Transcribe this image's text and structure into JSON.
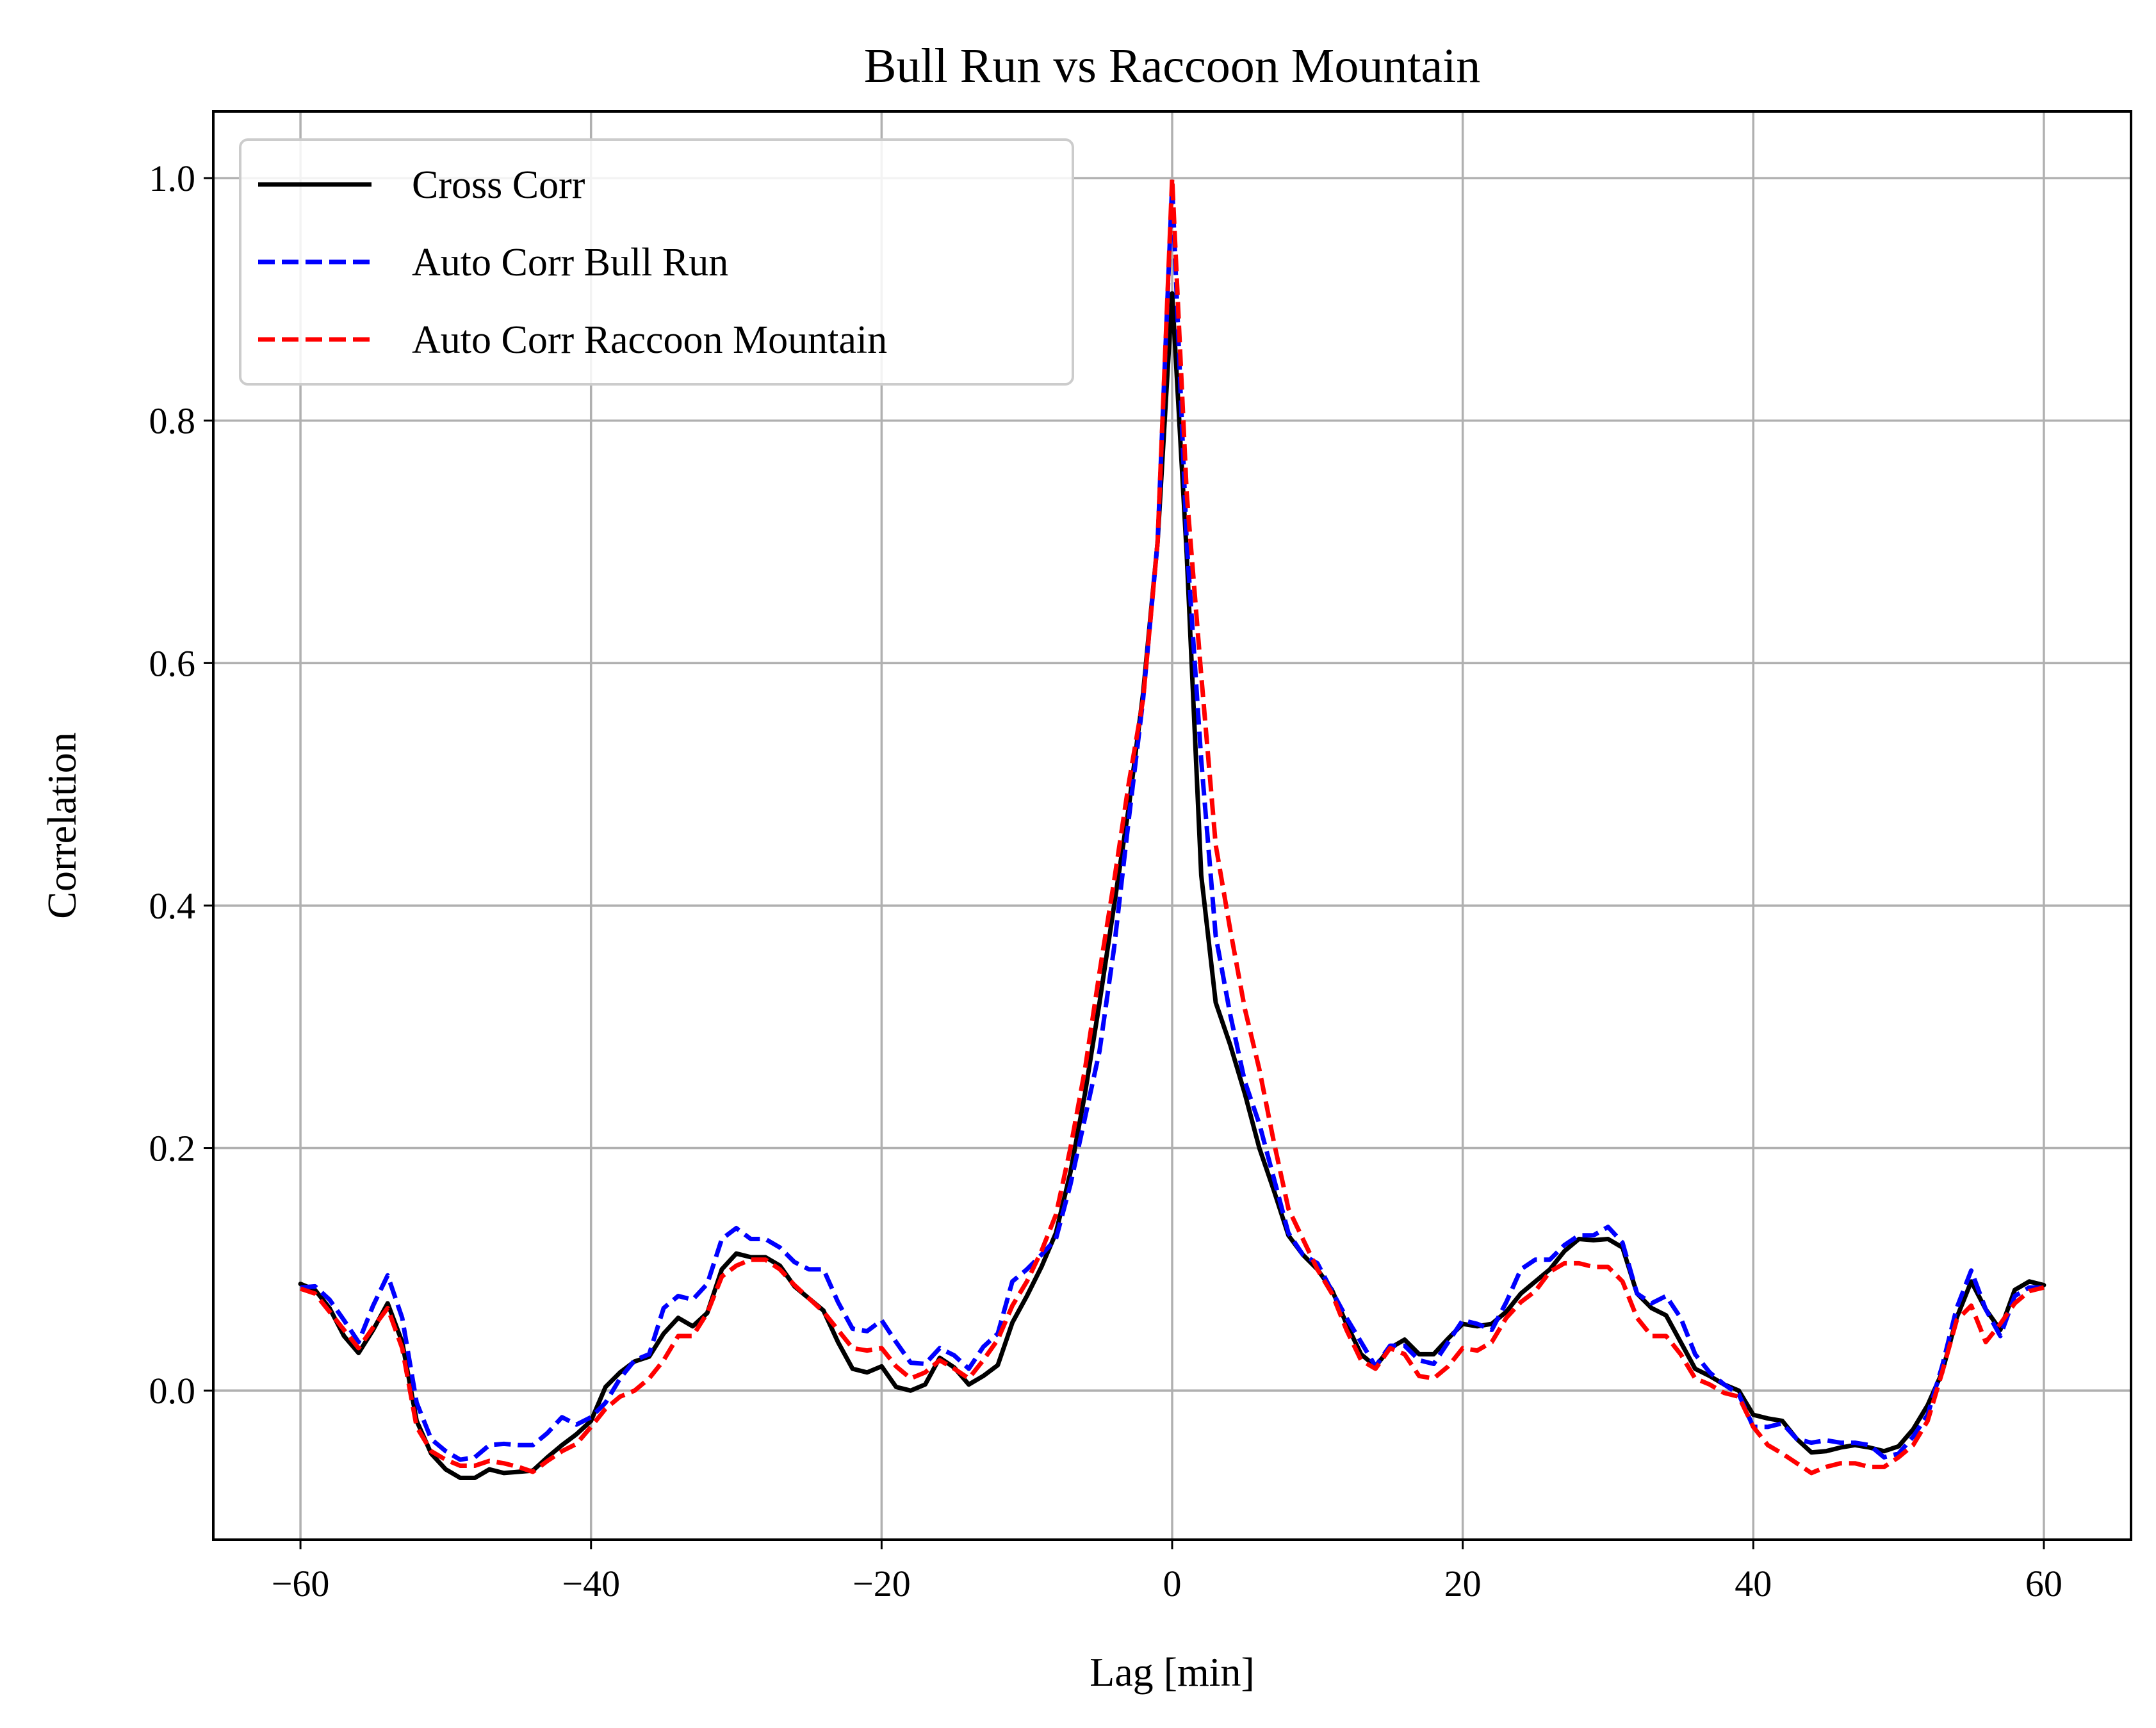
{
  "chart_data": {
    "type": "line",
    "title": "Bull Run vs Raccoon Mountain",
    "xlabel": "Lag [min]",
    "ylabel": "Correlation",
    "xlim": [
      -66,
      66
    ],
    "ylim": [
      -0.123,
      1.055
    ],
    "xticks": [
      -60,
      -40,
      -20,
      0,
      20,
      40,
      60
    ],
    "xtick_labels": [
      "−60",
      "−40",
      "−20",
      "0",
      "20",
      "40",
      "60"
    ],
    "yticks": [
      0.0,
      0.2,
      0.4,
      0.6,
      0.8,
      1.0
    ],
    "ytick_labels": [
      "0.0",
      "0.2",
      "0.4",
      "0.6",
      "0.8",
      "1.0"
    ],
    "grid": true,
    "legend_position": "top-left",
    "x": [
      -60,
      -59,
      -58,
      -57,
      -56,
      -55,
      -54,
      -53,
      -52,
      -51,
      -50,
      -49,
      -48,
      -47,
      -46,
      -45,
      -44,
      -43,
      -42,
      -41,
      -40,
      -39,
      -38,
      -37,
      -36,
      -35,
      -34,
      -33,
      -32,
      -31,
      -30,
      -29,
      -28,
      -27,
      -26,
      -25,
      -24,
      -23,
      -22,
      -21,
      -20,
      -19,
      -18,
      -17,
      -16,
      -15,
      -14,
      -13,
      -12,
      -11,
      -10,
      -9,
      -8,
      -7,
      -6,
      -5,
      -4,
      -3,
      -2,
      -1,
      0,
      1,
      2,
      3,
      4,
      5,
      6,
      7,
      8,
      9,
      10,
      11,
      12,
      13,
      14,
      15,
      16,
      17,
      18,
      19,
      20,
      21,
      22,
      23,
      24,
      25,
      26,
      27,
      28,
      29,
      30,
      31,
      32,
      33,
      34,
      35,
      36,
      37,
      38,
      39,
      40,
      41,
      42,
      43,
      44,
      45,
      46,
      47,
      48,
      49,
      50,
      51,
      52,
      53,
      54,
      55,
      56,
      57,
      58,
      59,
      60
    ],
    "series": [
      {
        "name": "Cross Corr",
        "color": "#000000",
        "dash": "solid",
        "values": [
          0.088,
          0.083,
          0.068,
          0.045,
          0.031,
          0.05,
          0.072,
          0.04,
          -0.025,
          -0.052,
          -0.065,
          -0.072,
          -0.072,
          -0.065,
          -0.068,
          -0.067,
          -0.066,
          -0.055,
          -0.045,
          -0.036,
          -0.025,
          0.003,
          0.015,
          0.024,
          0.028,
          0.047,
          0.06,
          0.053,
          0.064,
          0.1,
          0.113,
          0.11,
          0.11,
          0.103,
          0.086,
          0.076,
          0.066,
          0.04,
          0.018,
          0.015,
          0.02,
          0.003,
          0.0,
          0.005,
          0.027,
          0.019,
          0.005,
          0.012,
          0.021,
          0.056,
          0.078,
          0.102,
          0.13,
          0.18,
          0.245,
          0.32,
          0.4,
          0.48,
          0.575,
          0.7,
          0.905,
          0.69,
          0.425,
          0.32,
          0.285,
          0.245,
          0.2,
          0.165,
          0.128,
          0.112,
          0.1,
          0.083,
          0.055,
          0.03,
          0.02,
          0.035,
          0.042,
          0.03,
          0.03,
          0.043,
          0.055,
          0.053,
          0.055,
          0.065,
          0.08,
          0.09,
          0.1,
          0.115,
          0.125,
          0.124,
          0.125,
          0.118,
          0.08,
          0.068,
          0.062,
          0.04,
          0.018,
          0.012,
          0.005,
          0.0,
          -0.02,
          -0.023,
          -0.025,
          -0.04,
          -0.051,
          -0.05,
          -0.047,
          -0.045,
          -0.047,
          -0.05,
          -0.046,
          -0.032,
          -0.012,
          0.015,
          0.06,
          0.09,
          0.067,
          0.05,
          0.083,
          0.09,
          0.087
        ]
      },
      {
        "name": "Auto Corr Bull Run",
        "color": "#0000ff",
        "dash": "dashed",
        "values": [
          0.085,
          0.086,
          0.075,
          0.058,
          0.04,
          0.07,
          0.095,
          0.06,
          -0.01,
          -0.04,
          -0.05,
          -0.057,
          -0.055,
          -0.045,
          -0.044,
          -0.045,
          -0.045,
          -0.035,
          -0.022,
          -0.028,
          -0.022,
          -0.01,
          0.01,
          0.025,
          0.03,
          0.068,
          0.078,
          0.075,
          0.088,
          0.125,
          0.134,
          0.125,
          0.125,
          0.118,
          0.106,
          0.1,
          0.1,
          0.073,
          0.051,
          0.049,
          0.058,
          0.04,
          0.023,
          0.022,
          0.035,
          0.029,
          0.018,
          0.036,
          0.047,
          0.09,
          0.1,
          0.112,
          0.125,
          0.17,
          0.225,
          0.28,
          0.365,
          0.47,
          0.57,
          0.7,
          0.995,
          0.7,
          0.52,
          0.375,
          0.31,
          0.255,
          0.22,
          0.175,
          0.13,
          0.112,
          0.105,
          0.082,
          0.06,
          0.04,
          0.02,
          0.037,
          0.037,
          0.025,
          0.022,
          0.04,
          0.058,
          0.055,
          0.05,
          0.073,
          0.1,
          0.108,
          0.108,
          0.12,
          0.128,
          0.128,
          0.135,
          0.122,
          0.08,
          0.072,
          0.078,
          0.06,
          0.03,
          0.015,
          0.005,
          -0.003,
          -0.03,
          -0.03,
          -0.027,
          -0.04,
          -0.043,
          -0.041,
          -0.043,
          -0.043,
          -0.045,
          -0.055,
          -0.052,
          -0.038,
          -0.02,
          0.02,
          0.068,
          0.099,
          0.067,
          0.045,
          0.078,
          0.085,
          0.085
        ]
      },
      {
        "name": "Auto Corr Raccoon Mountain",
        "color": "#ff0000",
        "dash": "dashed",
        "values": [
          0.084,
          0.08,
          0.065,
          0.05,
          0.035,
          0.052,
          0.068,
          0.035,
          -0.03,
          -0.05,
          -0.057,
          -0.062,
          -0.062,
          -0.058,
          -0.06,
          -0.063,
          -0.067,
          -0.058,
          -0.05,
          -0.044,
          -0.03,
          -0.015,
          -0.005,
          0.0,
          0.01,
          0.025,
          0.045,
          0.045,
          0.064,
          0.094,
          0.103,
          0.108,
          0.108,
          0.1,
          0.087,
          0.076,
          0.065,
          0.05,
          0.035,
          0.033,
          0.035,
          0.02,
          0.01,
          0.015,
          0.025,
          0.018,
          0.01,
          0.025,
          0.042,
          0.07,
          0.09,
          0.115,
          0.145,
          0.2,
          0.265,
          0.345,
          0.42,
          0.5,
          0.57,
          0.7,
          1.0,
          0.74,
          0.59,
          0.45,
          0.38,
          0.315,
          0.265,
          0.205,
          0.15,
          0.125,
          0.1,
          0.08,
          0.05,
          0.025,
          0.018,
          0.035,
          0.03,
          0.012,
          0.01,
          0.02,
          0.035,
          0.033,
          0.04,
          0.06,
          0.073,
          0.082,
          0.098,
          0.105,
          0.105,
          0.102,
          0.102,
          0.09,
          0.06,
          0.045,
          0.045,
          0.03,
          0.01,
          0.005,
          -0.002,
          -0.005,
          -0.03,
          -0.045,
          -0.052,
          -0.06,
          -0.068,
          -0.063,
          -0.06,
          -0.06,
          -0.063,
          -0.063,
          -0.055,
          -0.045,
          -0.025,
          0.015,
          0.058,
          0.07,
          0.04,
          0.055,
          0.072,
          0.082,
          0.085
        ]
      }
    ]
  }
}
